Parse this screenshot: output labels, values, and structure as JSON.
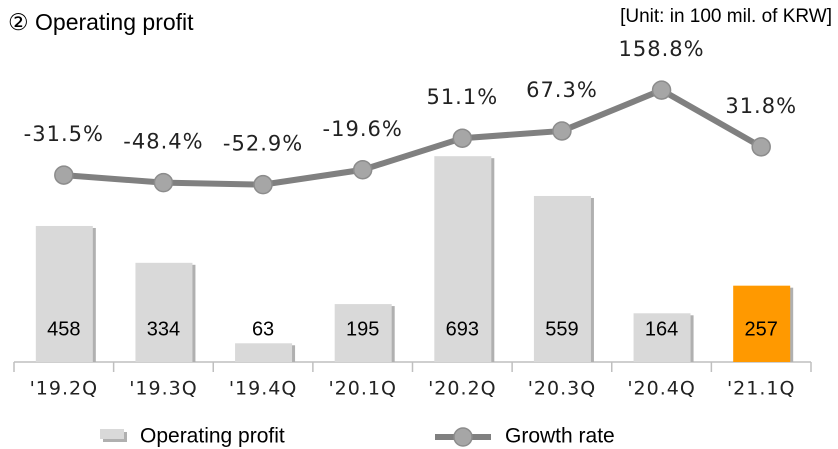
{
  "chart_data": {
    "type": "bar_line",
    "title": "② Operating profit",
    "unit_note": "[Unit: in 100 mil. of KRW]",
    "categories": [
      "'19.2Q",
      "'19.3Q",
      "'19.4Q",
      "'20.1Q",
      "'20.2Q",
      "'20.3Q",
      "'20.4Q",
      "'21.1Q"
    ],
    "series": [
      {
        "name": "Operating profit",
        "type": "bar",
        "color": "#d9d9d9",
        "colors": [
          "#d9d9d9",
          "#d9d9d9",
          "#d9d9d9",
          "#d9d9d9",
          "#d9d9d9",
          "#d9d9d9",
          "#d9d9d9",
          "#ff9900"
        ],
        "values": [
          458,
          334,
          63,
          195,
          693,
          559,
          164,
          257
        ]
      },
      {
        "name": "Growth rate",
        "type": "line",
        "axis": "y2",
        "color": "#808080",
        "values": [
          -31.5,
          -48.4,
          -52.9,
          -19.6,
          51.1,
          67.3,
          158.8,
          31.8
        ],
        "value_labels": [
          "-31.5%",
          "-48.4%",
          "-52.9%",
          "-19.6%",
          "51.1%",
          "67.3%",
          "158.8%",
          "31.8%"
        ]
      }
    ],
    "ylim": [
      0,
      1000
    ],
    "y2lim": [
      -450,
      215
    ],
    "legend": "bottom"
  }
}
